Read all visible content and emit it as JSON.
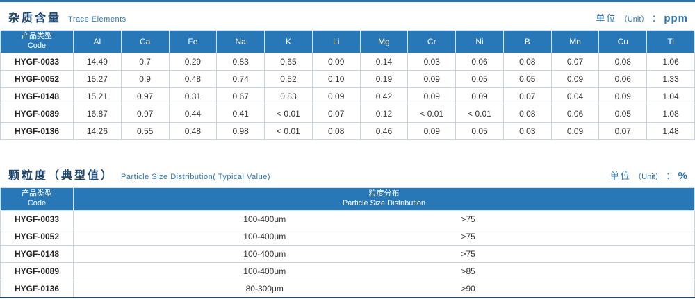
{
  "tables": [
    {
      "title_zh": "杂质含量",
      "title_en": "Trace Elements",
      "unit": {
        "zh": "单位",
        "paren": "（Unit）",
        "colon": "：",
        "value": "ppm"
      },
      "header": {
        "code_zh": "产品类型",
        "code_en": "Code",
        "elements": [
          "Al",
          "Ca",
          "Fe",
          "Na",
          "K",
          "Li",
          "Mg",
          "Cr",
          "Ni",
          "B",
          "Mn",
          "Cu",
          "Ti"
        ]
      },
      "rows": [
        {
          "code": "HYGF-0033",
          "values": [
            "14.49",
            "0.7",
            "0.29",
            "0.83",
            "0.65",
            "0.09",
            "0.14",
            "0.03",
            "0.06",
            "0.08",
            "0.07",
            "0.08",
            "1.06"
          ]
        },
        {
          "code": "HYGF-0052",
          "values": [
            "15.27",
            "0.9",
            "0.48",
            "0.74",
            "0.52",
            "0.10",
            "0.19",
            "0.09",
            "0.05",
            "0.05",
            "0.09",
            "0.06",
            "1.33"
          ]
        },
        {
          "code": "HYGF-0148",
          "values": [
            "15.21",
            "0.97",
            "0.31",
            "0.67",
            "0.83",
            "0.09",
            "0.42",
            "0.09",
            "0.09",
            "0.07",
            "0.04",
            "0.09",
            "1.04"
          ]
        },
        {
          "code": "HYGF-0089",
          "values": [
            "16.87",
            "0.97",
            "0.44",
            "0.41",
            "< 0.01",
            "0.07",
            "0.12",
            "< 0.01",
            "< 0.01",
            "0.08",
            "0.06",
            "0.05",
            "1.08"
          ]
        },
        {
          "code": "HYGF-0136",
          "values": [
            "14.26",
            "0.55",
            "0.48",
            "0.98",
            "< 0.01",
            "0.08",
            "0.46",
            "0.09",
            "0.05",
            "0.03",
            "0.09",
            "0.07",
            "1.48"
          ]
        }
      ]
    },
    {
      "title_zh": "颗粒度（典型值）",
      "title_en": "Particle Size Distribution( Typical Value)",
      "unit": {
        "zh": "单位",
        "paren": "（Unit）",
        "colon": "：",
        "value": "%"
      },
      "header": {
        "code_zh": "产品类型",
        "code_en": "Code",
        "span_zh": "粒度分布",
        "span_en": "Particle Size  Distribution"
      },
      "rows": [
        {
          "code": "HYGF-0033",
          "range": "100-400μm",
          "value": ">75"
        },
        {
          "code": "HYGF-0052",
          "range": "100-400μm",
          "value": ">75"
        },
        {
          "code": "HYGF-0148",
          "range": "100-400μm",
          "value": ">75"
        },
        {
          "code": "HYGF-0089",
          "range": "100-400μm",
          "value": ">85"
        },
        {
          "code": "HYGF-0136",
          "range": "80-300μm",
          "value": ">90"
        }
      ]
    }
  ],
  "colors": {
    "header_bg": "#2878b8",
    "title_text": "#1d4670",
    "accent_blue": "#2e78b8",
    "cell_border": "#c9d4df",
    "bottom_rule": "#2b4a6b"
  }
}
